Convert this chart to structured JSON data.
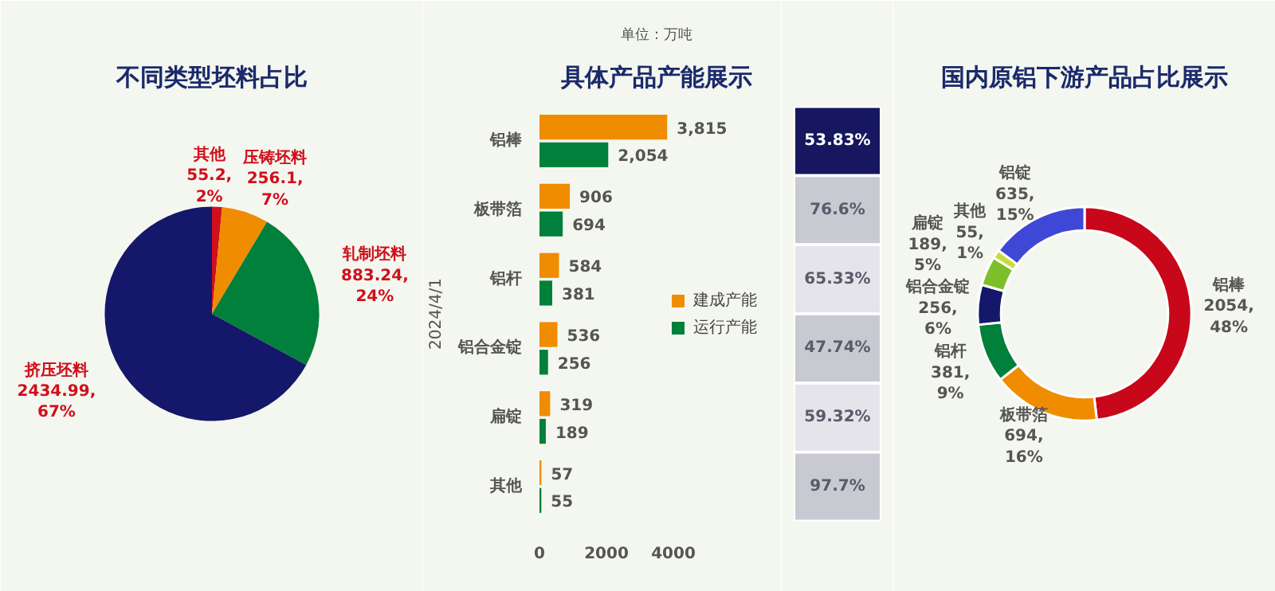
{
  "chart_data": [
    {
      "type": "pie",
      "title": "不同类型坯料占比",
      "categories": [
        "其他",
        "压铸坯料",
        "轧制坯料",
        "挤压坯料"
      ],
      "values": [
        55.2,
        256.1,
        883.24,
        2434.99
      ],
      "colors": [
        "#d0101c",
        "#f08c00",
        "#00803a",
        "#15176a"
      ],
      "value_labels": [
        "55.2, 2%",
        "256.1, 7%",
        "883.24, 24%",
        "2434.99, 67%"
      ]
    },
    {
      "type": "bar",
      "orientation": "horizontal",
      "title": "具体产品产能展示",
      "subtitle": "单位：万吨",
      "ylabel": "2024/4/1",
      "categories": [
        "铝棒",
        "板带箔",
        "铝杆",
        "铝合金锭",
        "扁锭",
        "其他"
      ],
      "series": [
        {
          "name": "建成产能",
          "color": "#f08c00",
          "values": [
            3815,
            906,
            584,
            536,
            319,
            57
          ],
          "value_labels": [
            "3,815",
            "906",
            "584",
            "536",
            "319",
            "57"
          ]
        },
        {
          "name": "运行产能",
          "color": "#00803a",
          "values": [
            2054,
            694,
            381,
            256,
            189,
            55
          ],
          "value_labels": [
            "2,054",
            "694",
            "381",
            "256",
            "189",
            "55"
          ]
        }
      ],
      "xlim": [
        0,
        7000
      ],
      "xticks": [
        0,
        2000,
        4000
      ],
      "legend": "right",
      "grid": false
    },
    {
      "type": "other",
      "annotations": [
        "53.83%",
        "76.6%",
        "65.33%",
        "47.74%",
        "59.32%",
        "97.7%"
      ]
    },
    {
      "type": "donut",
      "title": "国内原铝下游产品占比展示",
      "categories": [
        "铝棒",
        "板带箔",
        "铝杆",
        "铝合金锭",
        "扁锭",
        "其他",
        "铝锭"
      ],
      "values": [
        2054,
        694,
        381,
        256,
        189,
        55,
        635
      ],
      "colors": [
        "#c8071a",
        "#f08c00",
        "#00803a",
        "#15176a",
        "#7dbf2a",
        "#c8dc3a",
        "#3f48d6"
      ],
      "value_labels": [
        "2054, 48%",
        "694, 16%",
        "381, 9%",
        "256, 6%",
        "189, 5%",
        "55, 1%",
        "635, 15%"
      ]
    }
  ]
}
